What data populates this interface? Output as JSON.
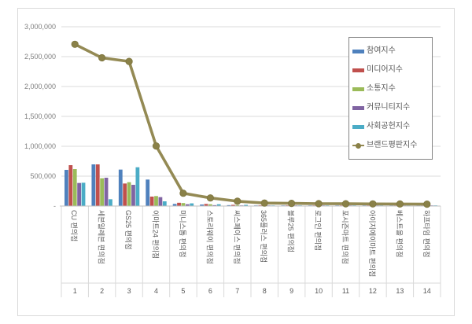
{
  "chart_data": {
    "type": "bar",
    "subtype": "grouped-bars-with-line-overlay",
    "title": "",
    "categories": [
      "CU 편의점",
      "세븐일레븐 편의점",
      "GS25 편의점",
      "이마트24 편의점",
      "미니스톱 편의점",
      "스토리웨이 편의점",
      "씨스페이스 편의점",
      "365플러스 편의점",
      "블루25 편의점",
      "로그인 편의점",
      "포시즌마트 편의점",
      "아이지에이마트 편의점",
      "베스트올 편의점",
      "하프타임 편의점"
    ],
    "ranks": [
      "1",
      "2",
      "3",
      "4",
      "5",
      "6",
      "7",
      "8",
      "9",
      "10",
      "11",
      "12",
      "13",
      "14"
    ],
    "series": [
      {
        "name": "참여지수",
        "type": "bar",
        "color": "#4F81BD",
        "values": [
          605000,
          697000,
          610000,
          443000,
          35000,
          25000,
          15000,
          10000,
          9000,
          8000,
          8000,
          7000,
          7000,
          6000
        ]
      },
      {
        "name": "미디어지수",
        "type": "bar",
        "color": "#C0504D",
        "values": [
          684000,
          697000,
          377000,
          158000,
          55000,
          35000,
          20000,
          12000,
          11000,
          10000,
          10000,
          9000,
          9000,
          8000
        ]
      },
      {
        "name": "소통지수",
        "type": "bar",
        "color": "#9BBB59",
        "values": [
          618000,
          465000,
          399000,
          167000,
          50000,
          30000,
          15000,
          10000,
          9000,
          8000,
          8000,
          8000,
          7000,
          7000
        ]
      },
      {
        "name": "커뮤니티지수",
        "type": "bar",
        "color": "#8064A2",
        "values": [
          386000,
          474000,
          355000,
          149000,
          30000,
          15000,
          10000,
          8000,
          7000,
          7000,
          6000,
          6000,
          5000,
          5000
        ]
      },
      {
        "name": "사회공헌지수",
        "type": "bar",
        "color": "#4BACC6",
        "values": [
          390000,
          114000,
          649000,
          79000,
          45000,
          30000,
          20000,
          10000,
          9000,
          7000,
          6000,
          6000,
          6000,
          6000
        ]
      },
      {
        "name": "브랜드평판지수",
        "type": "line",
        "color": "#948A54",
        "marker_color": "#8A8148",
        "values": [
          2707000,
          2480000,
          2420000,
          1005000,
          215000,
          135000,
          80000,
          50000,
          45000,
          40000,
          38000,
          36000,
          34000,
          32000
        ]
      }
    ],
    "y_axis": {
      "min": 0,
      "max": 3000000,
      "step": 500000,
      "tick_labels": [
        "-",
        "500,000",
        "1,000,000",
        "1,500,000",
        "2,000,000",
        "2,500,000",
        "3,000,000"
      ]
    },
    "legend": {
      "position": "inside-top-right",
      "entries": [
        "참여지수",
        "미디어지수",
        "소통지수",
        "커뮤니티지수",
        "사회공헌지수",
        "브랜드평판지수"
      ]
    },
    "grid": true,
    "colors": {
      "frame_border": "#d9d9d9",
      "gridline": "#dbdbdb",
      "axis_line": "#bfbfbf",
      "separator": "#d9d9d9",
      "tick_text": "#808080",
      "label_text": "#595959"
    }
  }
}
